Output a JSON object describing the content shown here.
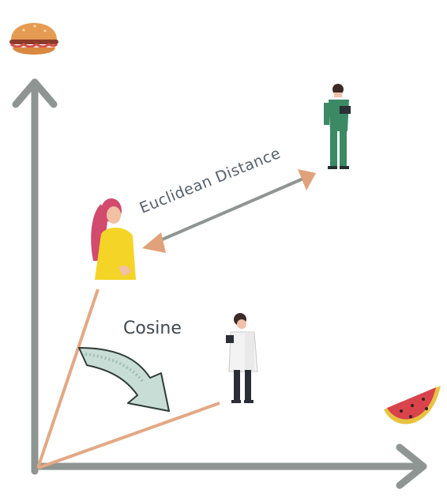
{
  "labels": {
    "euclidean_distance": "Euclidean Distance",
    "cosine": "Cosine"
  },
  "icons": {
    "y_axis_item": "burger-icon",
    "x_axis_item": "watermelon-icon",
    "person_a": "woman-yellow-shirt-icon",
    "person_b": "man-green-scrubs-icon",
    "person_c": "doctor-lab-coat-icon"
  },
  "colors": {
    "axis": "#8e9592",
    "distance_arrow": "#8e9592",
    "arrow_head": "#e0a27a",
    "vector_line": "#e3a884",
    "curved_arrow_fill": "#c8ddd6",
    "curved_arrow_stroke": "#2e3c36"
  }
}
